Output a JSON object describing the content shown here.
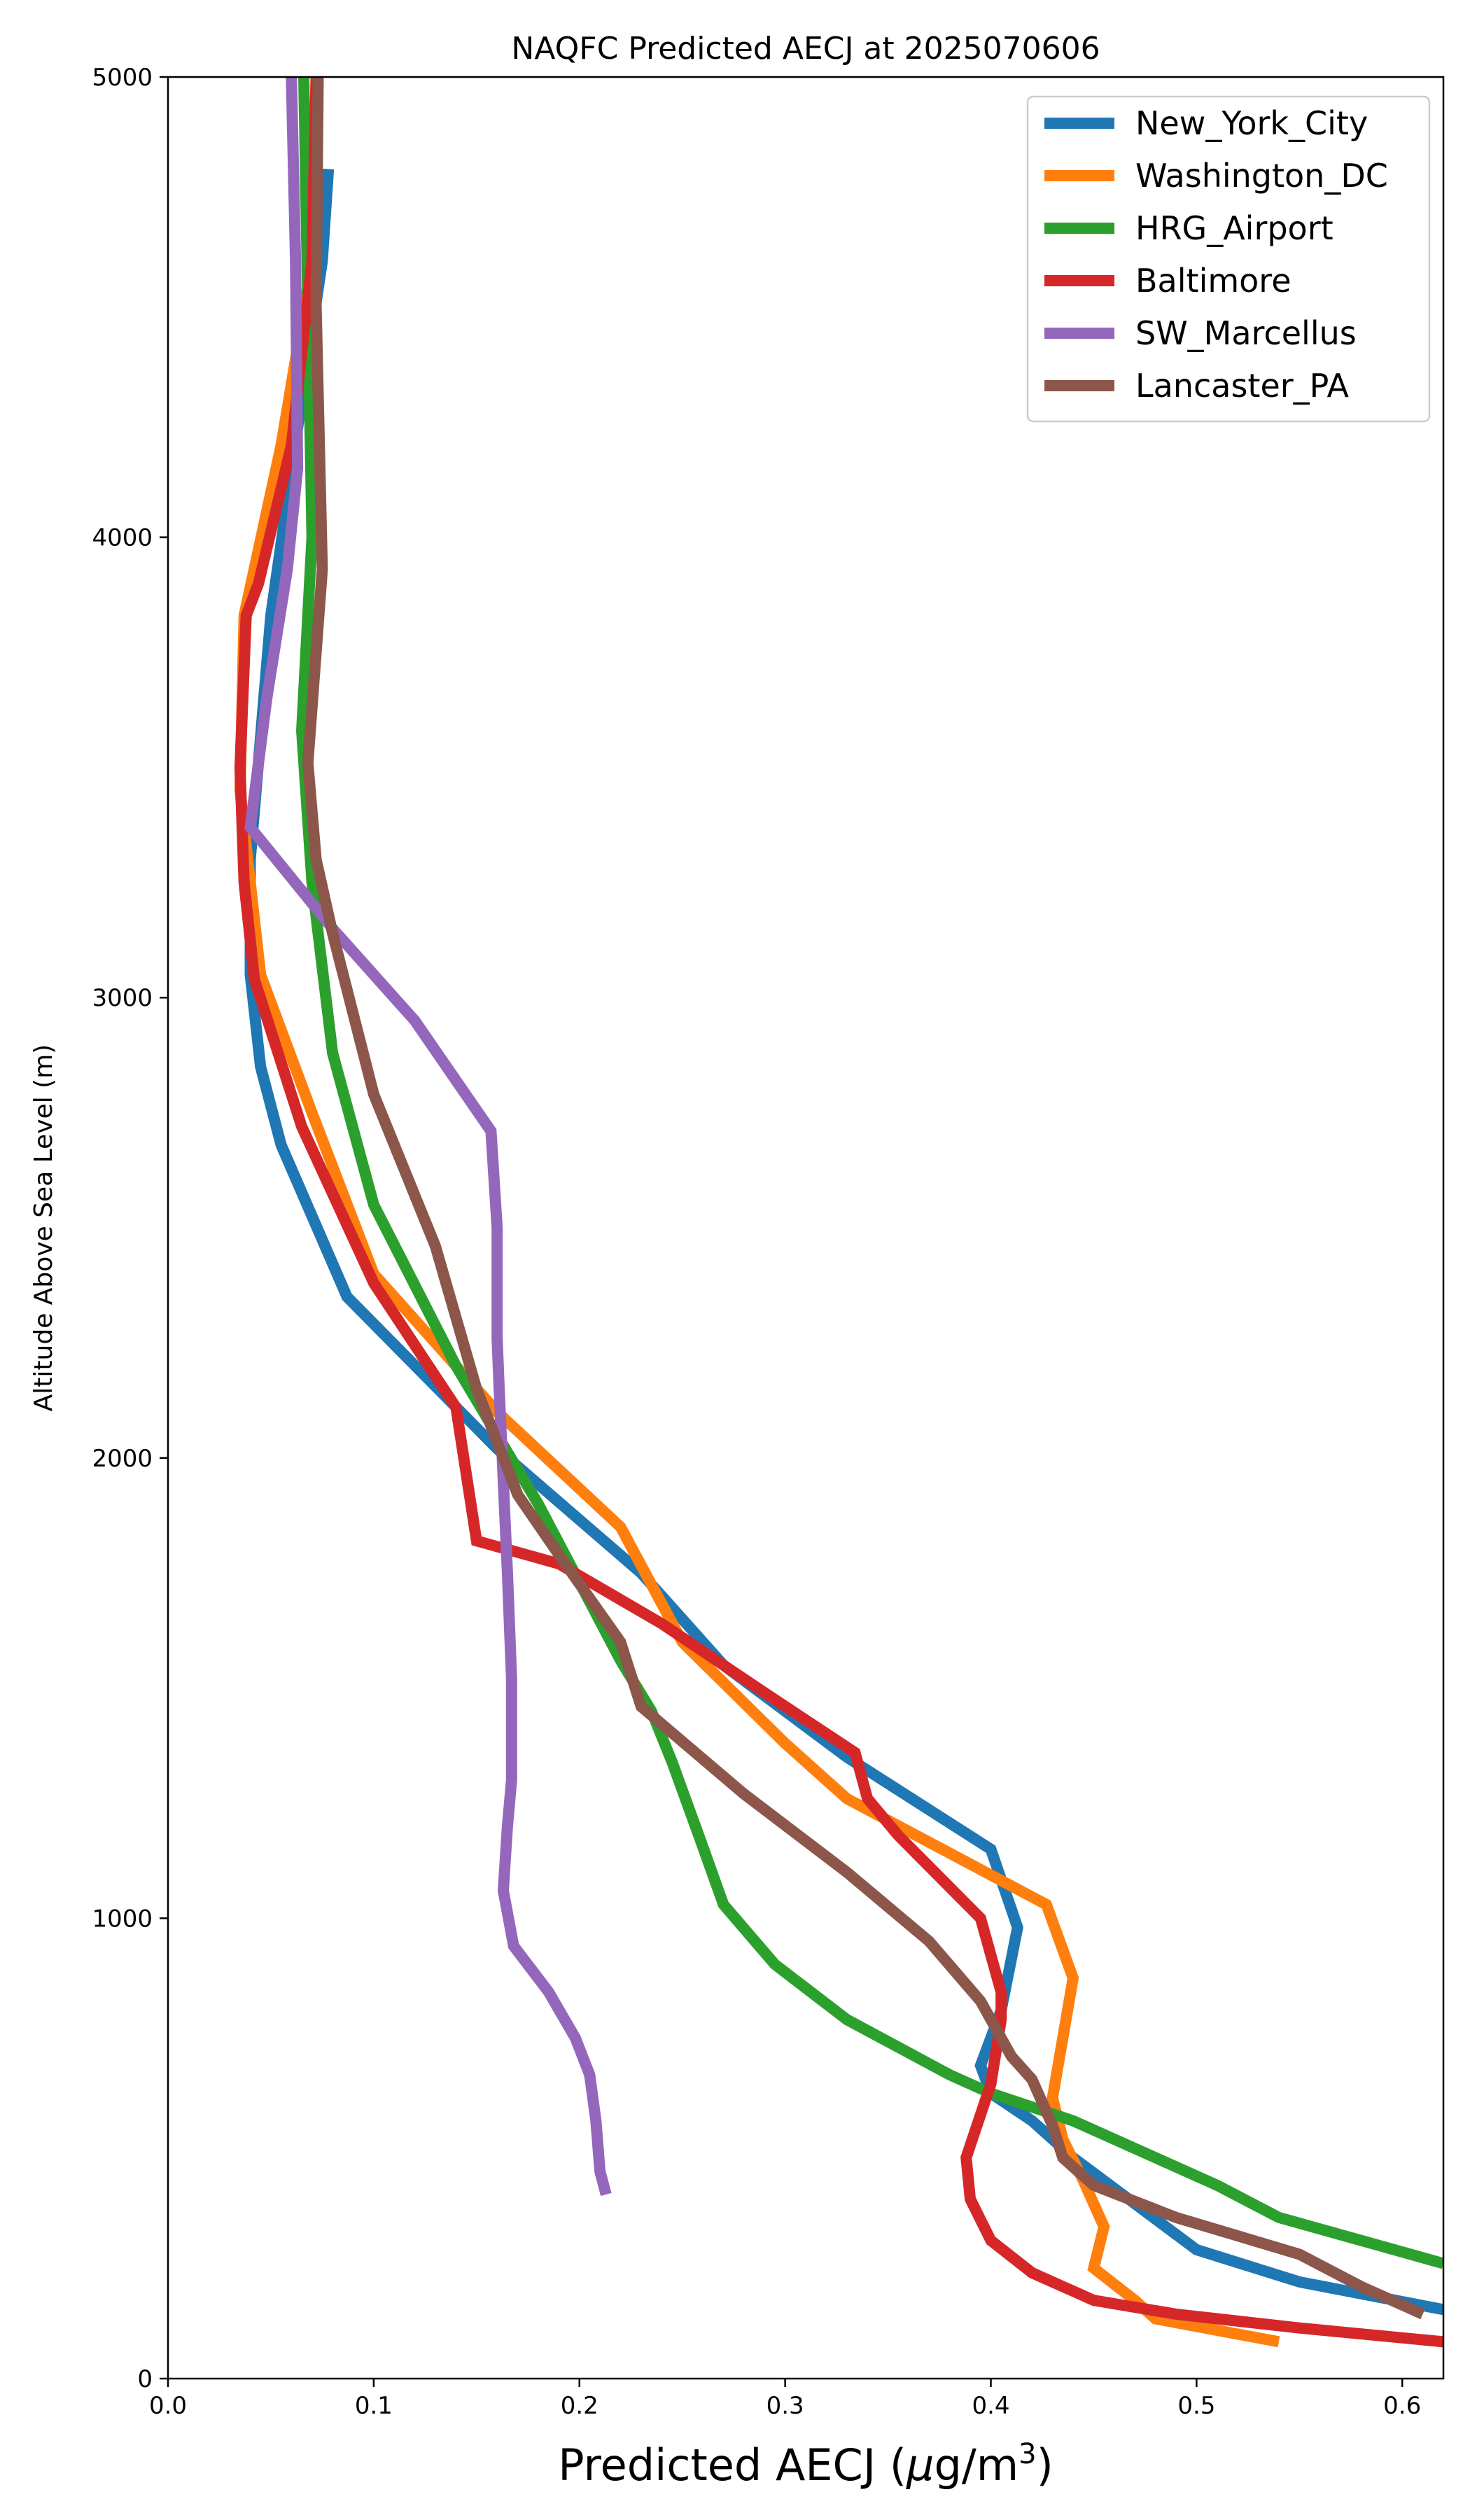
{
  "chart_data": {
    "type": "line",
    "title": "NAQFC Predicted AECJ at 2025070606",
    "xlabel": "Predicted AECJ (μg/m³)",
    "xlabel_parts": {
      "base": "Predicted AECJ (",
      "mu": "μ",
      "unit": "g/m",
      "sup": "3",
      "close": ")"
    },
    "ylabel": "Altitude Above Sea Level (m)",
    "xlim": [
      0.0,
      0.62
    ],
    "ylim": [
      0,
      5000
    ],
    "xticks": [
      0.0,
      0.1,
      0.2,
      0.3,
      0.4,
      0.5,
      0.6
    ],
    "xtick_labels": [
      "0.0",
      "0.1",
      "0.2",
      "0.3",
      "0.4",
      "0.5",
      "0.6"
    ],
    "yticks": [
      0,
      1000,
      2000,
      3000,
      4000,
      5000
    ],
    "ytick_labels": [
      "0",
      "1000",
      "2000",
      "3000",
      "4000",
      "5000"
    ],
    "grid": false,
    "legend_position": "top-right",
    "series": [
      {
        "name": "New_York_City",
        "color": "#1f77b4",
        "x": [
          0.62,
          0.55,
          0.5,
          0.47,
          0.44,
          0.42,
          0.4,
          0.395,
          0.405,
          0.413,
          0.4,
          0.33,
          0.27,
          0.23,
          0.16,
          0.087,
          0.055,
          0.045,
          0.04,
          0.04,
          0.05,
          0.065,
          0.075,
          0.078
        ],
        "y": [
          150,
          210,
          280,
          380,
          480,
          560,
          620,
          680,
          800,
          980,
          1150,
          1350,
          1550,
          1750,
          2020,
          2350,
          2680,
          2850,
          3050,
          3300,
          3830,
          4300,
          4600,
          4800
        ]
      },
      {
        "name": "Washington_DC",
        "color": "#ff7f0e",
        "x": [
          0.54,
          0.48,
          0.47,
          0.45,
          0.455,
          0.445,
          0.435,
          0.43,
          0.44,
          0.427,
          0.33,
          0.3,
          0.25,
          0.22,
          0.16,
          0.1,
          0.07,
          0.045,
          0.035,
          0.037,
          0.055,
          0.07,
          0.072
        ],
        "y": [
          80,
          130,
          170,
          240,
          330,
          430,
          520,
          610,
          870,
          1030,
          1260,
          1380,
          1600,
          1850,
          2100,
          2400,
          2750,
          3050,
          3450,
          3830,
          4200,
          4600,
          5000
        ]
      },
      {
        "name": "HRG_Airport",
        "color": "#2ca02c",
        "x": [
          0.62,
          0.58,
          0.54,
          0.51,
          0.475,
          0.44,
          0.4,
          0.38,
          0.33,
          0.295,
          0.27,
          0.258,
          0.245,
          0.235,
          0.22,
          0.18,
          0.14,
          0.1,
          0.08,
          0.07,
          0.065,
          0.07,
          0.068,
          0.066
        ],
        "y": [
          250,
          300,
          350,
          420,
          490,
          560,
          620,
          660,
          780,
          900,
          1030,
          1180,
          1340,
          1450,
          1560,
          1900,
          2200,
          2550,
          2880,
          3250,
          3580,
          4000,
          4500,
          5000
        ]
      },
      {
        "name": "Baltimore",
        "color": "#d62728",
        "x": [
          0.62,
          0.55,
          0.49,
          0.45,
          0.42,
          0.4,
          0.39,
          0.388,
          0.4,
          0.405,
          0.405,
          0.395,
          0.355,
          0.34,
          0.334,
          0.29,
          0.24,
          0.19,
          0.15,
          0.14,
          0.1,
          0.065,
          0.042,
          0.037,
          0.035,
          0.038,
          0.044,
          0.06,
          0.07,
          0.072
        ],
        "y": [
          80,
          110,
          140,
          170,
          230,
          300,
          390,
          480,
          640,
          780,
          840,
          1000,
          1180,
          1260,
          1360,
          1490,
          1640,
          1770,
          1820,
          2110,
          2380,
          2720,
          3040,
          3250,
          3500,
          3830,
          3900,
          4200,
          4600,
          5000
        ]
      },
      {
        "name": "SW_Marcellus",
        "color": "#9467bd",
        "x": [
          0.213,
          0.21,
          0.208,
          0.205,
          0.198,
          0.185,
          0.168,
          0.163,
          0.165,
          0.167,
          0.167,
          0.165,
          0.163,
          0.161,
          0.16,
          0.16,
          0.16,
          0.157,
          0.12,
          0.08,
          0.04,
          0.048,
          0.058,
          0.063,
          0.062,
          0.06
        ],
        "y": [
          400,
          450,
          560,
          660,
          740,
          840,
          940,
          1060,
          1200,
          1300,
          1520,
          1750,
          1950,
          2150,
          2260,
          2430,
          2500,
          2710,
          2950,
          3150,
          3370,
          3650,
          3930,
          4150,
          4600,
          5000
        ]
      },
      {
        "name": "Lancaster_PA",
        "color": "#8c564b",
        "x": [
          0.61,
          0.58,
          0.55,
          0.49,
          0.45,
          0.435,
          0.43,
          0.42,
          0.41,
          0.395,
          0.37,
          0.33,
          0.28,
          0.23,
          0.22,
          0.19,
          0.17,
          0.15,
          0.13,
          0.1,
          0.08,
          0.072,
          0.068,
          0.075,
          0.072,
          0.073
        ],
        "y": [
          140,
          200,
          270,
          350,
          420,
          480,
          550,
          650,
          700,
          820,
          950,
          1100,
          1270,
          1460,
          1600,
          1790,
          1920,
          2150,
          2460,
          2790,
          3140,
          3300,
          3510,
          3930,
          4500,
          5000
        ]
      }
    ]
  }
}
